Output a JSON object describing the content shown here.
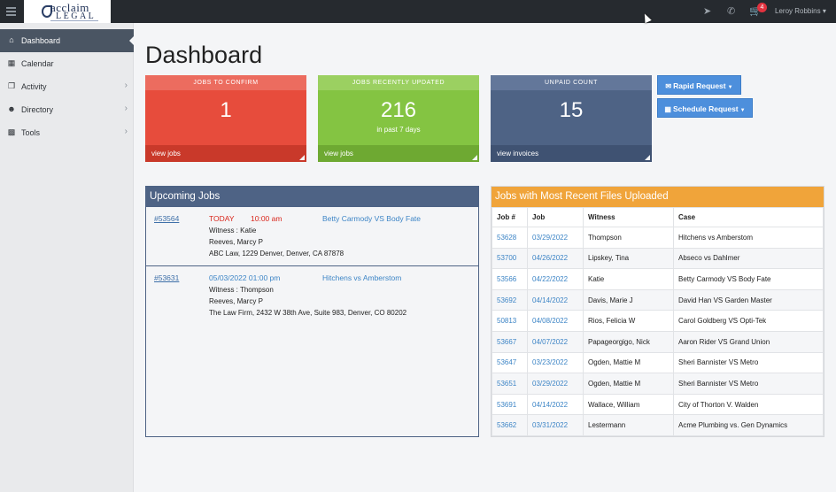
{
  "topbar": {
    "logo_line1": "acclaim",
    "logo_line2": "LEGAL",
    "cart_count": "4",
    "user_name": "Leroy Robbins"
  },
  "sidebar": {
    "items": [
      {
        "label": "Dashboard",
        "icon": "home-icon",
        "active": true
      },
      {
        "label": "Calendar",
        "icon": "calendar-icon"
      },
      {
        "label": "Activity",
        "icon": "copy-icon"
      },
      {
        "label": "Directory",
        "icon": "users-icon"
      },
      {
        "label": "Tools",
        "icon": "briefcase-icon"
      }
    ]
  },
  "page": {
    "title": "Dashboard"
  },
  "stats": [
    {
      "title": "JOBS TO CONFIRM",
      "value": "1",
      "sub": "",
      "footer": "view jobs",
      "color": "#e74c3c"
    },
    {
      "title": "JOBS RECENTLY UPDATED",
      "value": "216",
      "sub": "in past 7 days",
      "footer": "view jobs",
      "color": "#84c442"
    },
    {
      "title": "UNPAID COUNT",
      "value": "15",
      "sub": "",
      "footer": "view invoices",
      "color": "#4e6385"
    }
  ],
  "buttons": {
    "rapid": "Rapid Request",
    "schedule": "Schedule Request"
  },
  "upcoming": {
    "title": "Upcoming Jobs",
    "jobs": [
      {
        "id": "#53564",
        "date": "TODAY",
        "time": "10:00 am",
        "case": "Betty Carmody VS Body Fate",
        "witness": "Witness : Katie",
        "attorney": "Reeves, Marcy P",
        "location": "ABC Law, 1229 Denver, Denver, CA 87878"
      },
      {
        "id": "#53631",
        "date": "05/03/2022 01:00 pm",
        "time": "",
        "case": "Hitchens vs Amberstom",
        "witness": "Witness : Thompson",
        "attorney": "Reeves, Marcy P",
        "location": "The Law Firm, 2432 W 38th Ave, Suite 983, Denver, CO 80202"
      }
    ]
  },
  "recent": {
    "title": "Jobs with Most Recent Files Uploaded",
    "columns": [
      "Job #",
      "Job",
      "Witness",
      "Case"
    ],
    "rows": [
      [
        "53628",
        "03/29/2022",
        "Thompson",
        "Hitchens vs Amberstom"
      ],
      [
        "53700",
        "04/26/2022",
        "Lipskey, Tina",
        "Abseco vs Dahlmer"
      ],
      [
        "53566",
        "04/22/2022",
        "Katie",
        "Betty Carmody VS Body Fate"
      ],
      [
        "53692",
        "04/14/2022",
        "Davis, Marie J",
        "David Han VS Garden Master"
      ],
      [
        "50813",
        "04/08/2022",
        "Rios, Felicia W",
        "Carol Goldberg VS Opti-Tek"
      ],
      [
        "53667",
        "04/07/2022",
        "Papageorgigo, Nick",
        "Aaron Rider VS Grand Union"
      ],
      [
        "53647",
        "03/23/2022",
        "Ogden, Mattie M",
        "Sheri Bannister VS Metro"
      ],
      [
        "53651",
        "03/29/2022",
        "Ogden, Mattie M",
        "Sheri Bannister VS Metro"
      ],
      [
        "53691",
        "04/14/2022",
        "Wallace, William",
        "City of Thorton V. Walden"
      ],
      [
        "53662",
        "03/31/2022",
        "Lestermann",
        "Acme Plumbing vs. Gen Dynamics"
      ]
    ]
  }
}
